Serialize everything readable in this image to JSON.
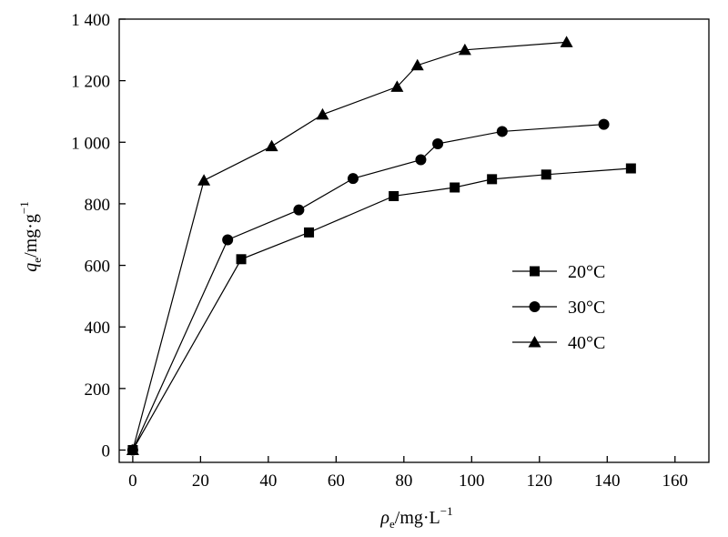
{
  "chart_data": {
    "type": "line",
    "xlabel": {
      "symbol": "ρ",
      "subscript": "e",
      "unit": "/mg·L",
      "exponent": "−1"
    },
    "ylabel": {
      "symbol": "q",
      "subscript": "e",
      "unit": "/mg·g",
      "exponent": "−1"
    },
    "xlim": [
      -4,
      170
    ],
    "ylim": [
      -40,
      1400
    ],
    "x_ticks": [
      0,
      20,
      40,
      60,
      80,
      100,
      120,
      140,
      160
    ],
    "x_tick_labels": [
      "0",
      "20",
      "40",
      "60",
      "80",
      "100",
      "120",
      "140",
      "160"
    ],
    "y_ticks": [
      0,
      200,
      400,
      600,
      800,
      1000,
      1200,
      1400
    ],
    "y_tick_labels": [
      "0",
      "200",
      "400",
      "600",
      "800",
      "1 000",
      "1 200",
      "1 400"
    ],
    "grid": false,
    "legend_position": "right-middle",
    "series": [
      {
        "name": "20°C",
        "marker": "square",
        "x": [
          0,
          32,
          52,
          77,
          95,
          106,
          122,
          147
        ],
        "y": [
          0,
          620,
          707,
          825,
          853,
          880,
          895,
          915
        ]
      },
      {
        "name": "30°C",
        "marker": "circle",
        "x": [
          0,
          28,
          49,
          65,
          85,
          90,
          109,
          139
        ],
        "y": [
          0,
          683,
          780,
          882,
          943,
          995,
          1035,
          1058
        ]
      },
      {
        "name": "40°C",
        "marker": "triangle",
        "x": [
          0,
          21,
          41,
          56,
          78,
          84,
          98,
          128
        ],
        "y": [
          0,
          876,
          987,
          1090,
          1180,
          1250,
          1300,
          1325
        ]
      }
    ],
    "colors": {
      "line": "#000000",
      "marker": "#000000"
    }
  }
}
